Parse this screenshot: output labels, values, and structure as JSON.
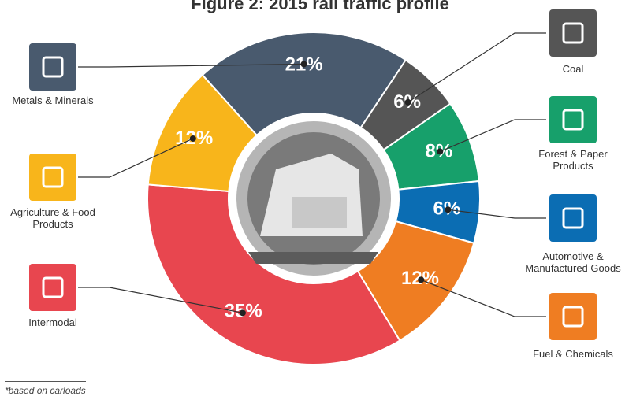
{
  "chart_data": {
    "type": "donut",
    "title": "Figure 2: 2015 rail traffic profile",
    "categories": [
      "Metals & Minerals",
      "Coal",
      "Forest & Paper Products",
      "Automotive & Manufactured Goods",
      "Fuel & Chemicals",
      "Intermodal",
      "Agriculture & Food Products"
    ],
    "values": [
      21,
      6,
      8,
      6,
      12,
      35,
      12
    ],
    "value_labels": [
      "21%",
      "6%",
      "8%",
      "6%",
      "12%",
      "35%",
      "12%"
    ],
    "colors": [
      "#495a6e",
      "#555555",
      "#17a06b",
      "#0b6db3",
      "#ef7d22",
      "#e8464f",
      "#f8b51b"
    ],
    "footnote": "*based on carloads"
  }
}
